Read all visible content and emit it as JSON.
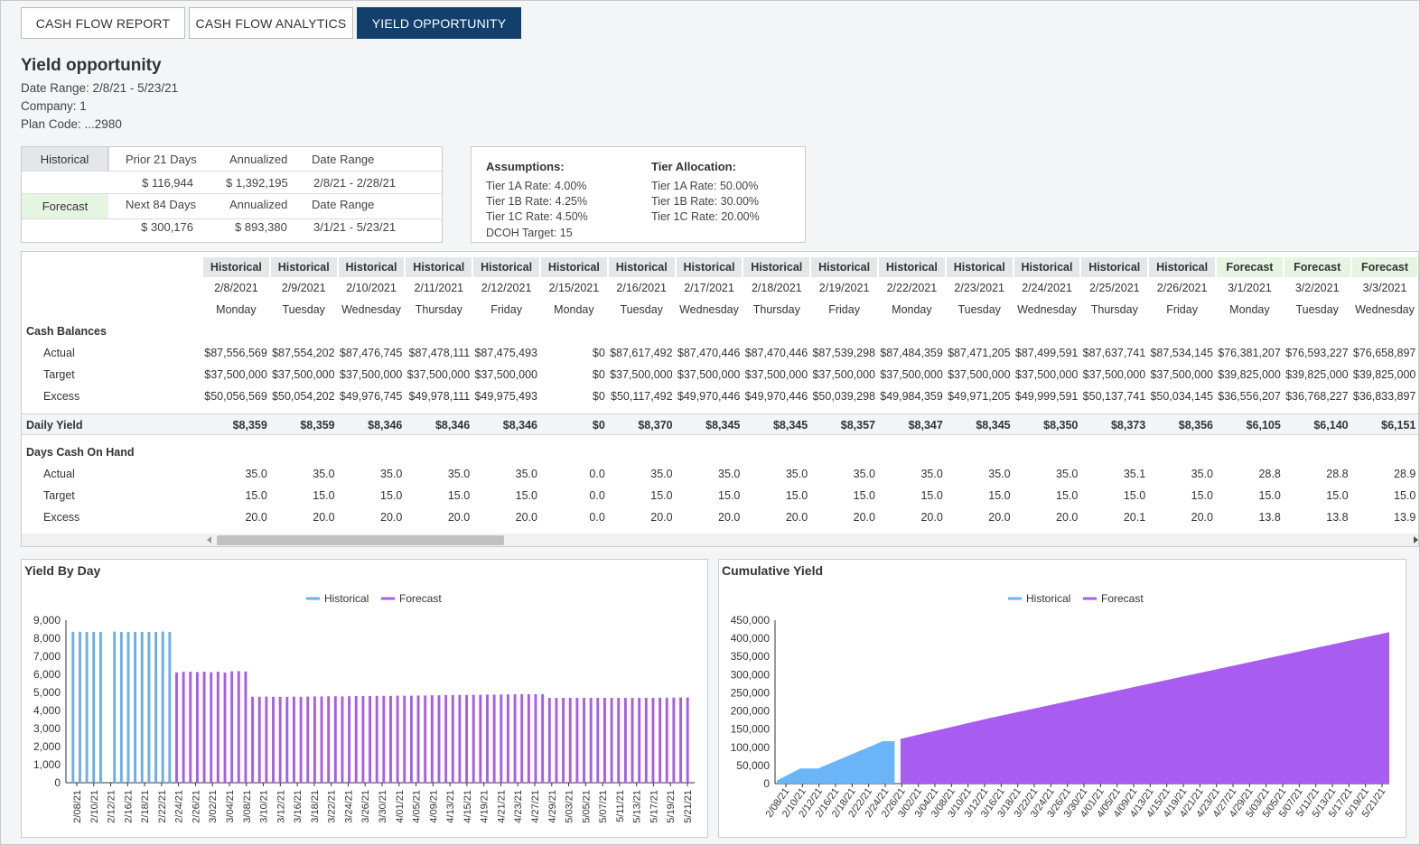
{
  "tabs": [
    {
      "label": "CASH FLOW REPORT",
      "active": false
    },
    {
      "label": "CASH FLOW ANALYTICS",
      "active": false
    },
    {
      "label": "YIELD OPPORTUNITY",
      "active": true
    }
  ],
  "page": {
    "title": "Yield opportunity",
    "date_range": "Date Range: 2/8/21 - 5/23/21",
    "company": "Company: 1",
    "plan_code": "Plan Code: ...2980"
  },
  "summary": {
    "historical_label": "Historical",
    "forecast_label": "Forecast",
    "hist_headers": [
      "Prior 21 Days",
      "Annualized",
      "Date Range"
    ],
    "hist_values": [
      "$ 116,944",
      "$ 1,392,195",
      "2/8/21 - 2/28/21"
    ],
    "fore_headers": [
      "Next 84 Days",
      "Annualized",
      "Date Range"
    ],
    "fore_values": [
      "$ 300,176",
      "$ 893,380",
      "3/1/21 - 5/23/21"
    ]
  },
  "assumptions": {
    "title": "Assumptions:",
    "lines": [
      "Tier 1A Rate: 4.00%",
      "Tier 1B Rate: 4.25%",
      "Tier 1C Rate: 4.50%",
      "DCOH Target: 15"
    ],
    "tier_title": "Tier Allocation:",
    "tier_lines": [
      "Tier 1A Rate: 50.00%",
      "Tier 1B Rate: 30.00%",
      "Tier 1C Rate: 20.00%"
    ]
  },
  "grid": {
    "sections": {
      "cash": "Cash Balances",
      "yield": "Daily Yield",
      "dcoh": "Days Cash On Hand"
    },
    "row_labels": {
      "actual": "Actual",
      "target": "Target",
      "excess": "Excess"
    },
    "columns": [
      {
        "type": "Historical",
        "date": "2/8/2021",
        "day": "Monday",
        "actual": "$87,556,569",
        "target": "$37,500,000",
        "excess": "$50,056,569",
        "yield": "$8,359",
        "d_actual": "35.0",
        "d_target": "15.0",
        "d_excess": "20.0"
      },
      {
        "type": "Historical",
        "date": "2/9/2021",
        "day": "Tuesday",
        "actual": "$87,554,202",
        "target": "$37,500,000",
        "excess": "$50,054,202",
        "yield": "$8,359",
        "d_actual": "35.0",
        "d_target": "15.0",
        "d_excess": "20.0"
      },
      {
        "type": "Historical",
        "date": "2/10/2021",
        "day": "Wednesday",
        "actual": "$87,476,745",
        "target": "$37,500,000",
        "excess": "$49,976,745",
        "yield": "$8,346",
        "d_actual": "35.0",
        "d_target": "15.0",
        "d_excess": "20.0"
      },
      {
        "type": "Historical",
        "date": "2/11/2021",
        "day": "Thursday",
        "actual": "$87,478,111",
        "target": "$37,500,000",
        "excess": "$49,978,111",
        "yield": "$8,346",
        "d_actual": "35.0",
        "d_target": "15.0",
        "d_excess": "20.0"
      },
      {
        "type": "Historical",
        "date": "2/12/2021",
        "day": "Friday",
        "actual": "$87,475,493",
        "target": "$37,500,000",
        "excess": "$49,975,493",
        "yield": "$8,346",
        "d_actual": "35.0",
        "d_target": "15.0",
        "d_excess": "20.0"
      },
      {
        "type": "Historical",
        "date": "2/15/2021",
        "day": "Monday",
        "actual": "$0",
        "target": "$0",
        "excess": "$0",
        "yield": "$0",
        "d_actual": "0.0",
        "d_target": "0.0",
        "d_excess": "0.0"
      },
      {
        "type": "Historical",
        "date": "2/16/2021",
        "day": "Tuesday",
        "actual": "$87,617,492",
        "target": "$37,500,000",
        "excess": "$50,117,492",
        "yield": "$8,370",
        "d_actual": "35.0",
        "d_target": "15.0",
        "d_excess": "20.0"
      },
      {
        "type": "Historical",
        "date": "2/17/2021",
        "day": "Wednesday",
        "actual": "$87,470,446",
        "target": "$37,500,000",
        "excess": "$49,970,446",
        "yield": "$8,345",
        "d_actual": "35.0",
        "d_target": "15.0",
        "d_excess": "20.0"
      },
      {
        "type": "Historical",
        "date": "2/18/2021",
        "day": "Thursday",
        "actual": "$87,470,446",
        "target": "$37,500,000",
        "excess": "$49,970,446",
        "yield": "$8,345",
        "d_actual": "35.0",
        "d_target": "15.0",
        "d_excess": "20.0"
      },
      {
        "type": "Historical",
        "date": "2/19/2021",
        "day": "Friday",
        "actual": "$87,539,298",
        "target": "$37,500,000",
        "excess": "$50,039,298",
        "yield": "$8,357",
        "d_actual": "35.0",
        "d_target": "15.0",
        "d_excess": "20.0"
      },
      {
        "type": "Historical",
        "date": "2/22/2021",
        "day": "Monday",
        "actual": "$87,484,359",
        "target": "$37,500,000",
        "excess": "$49,984,359",
        "yield": "$8,347",
        "d_actual": "35.0",
        "d_target": "15.0",
        "d_excess": "20.0"
      },
      {
        "type": "Historical",
        "date": "2/23/2021",
        "day": "Tuesday",
        "actual": "$87,471,205",
        "target": "$37,500,000",
        "excess": "$49,971,205",
        "yield": "$8,345",
        "d_actual": "35.0",
        "d_target": "15.0",
        "d_excess": "20.0"
      },
      {
        "type": "Historical",
        "date": "2/24/2021",
        "day": "Wednesday",
        "actual": "$87,499,591",
        "target": "$37,500,000",
        "excess": "$49,999,591",
        "yield": "$8,350",
        "d_actual": "35.0",
        "d_target": "15.0",
        "d_excess": "20.0"
      },
      {
        "type": "Historical",
        "date": "2/25/2021",
        "day": "Thursday",
        "actual": "$87,637,741",
        "target": "$37,500,000",
        "excess": "$50,137,741",
        "yield": "$8,373",
        "d_actual": "35.1",
        "d_target": "15.0",
        "d_excess": "20.1"
      },
      {
        "type": "Historical",
        "date": "2/26/2021",
        "day": "Friday",
        "actual": "$87,534,145",
        "target": "$37,500,000",
        "excess": "$50,034,145",
        "yield": "$8,356",
        "d_actual": "35.0",
        "d_target": "15.0",
        "d_excess": "20.0"
      },
      {
        "type": "Forecast",
        "date": "3/1/2021",
        "day": "Monday",
        "actual": "$76,381,207",
        "target": "$39,825,000",
        "excess": "$36,556,207",
        "yield": "$6,105",
        "d_actual": "28.8",
        "d_target": "15.0",
        "d_excess": "13.8"
      },
      {
        "type": "Forecast",
        "date": "3/2/2021",
        "day": "Tuesday",
        "actual": "$76,593,227",
        "target": "$39,825,000",
        "excess": "$36,768,227",
        "yield": "$6,140",
        "d_actual": "28.8",
        "d_target": "15.0",
        "d_excess": "13.8"
      },
      {
        "type": "Forecast",
        "date": "3/3/2021",
        "day": "Wednesday",
        "actual": "$76,658,897",
        "target": "$39,825,000",
        "excess": "$36,833,897",
        "yield": "$6,151",
        "d_actual": "28.9",
        "d_target": "15.0",
        "d_excess": "13.9"
      }
    ]
  },
  "chart_data": [
    {
      "type": "bar",
      "title": "Yield By Day",
      "legend": [
        "Historical",
        "Forecast"
      ],
      "legend_position": "top-center",
      "colors": {
        "Historical": "#6aaee8",
        "Forecast": "#a95ce8"
      },
      "ylim": [
        0,
        9000
      ],
      "yticks": [
        "9,000",
        "8,000",
        "7,000",
        "6,000",
        "5,000",
        "4,000",
        "3,000",
        "2,000",
        "1,000",
        "0"
      ],
      "xtick_labels": [
        "2/08/21",
        "2/10/21",
        "2/12/21",
        "2/16/21",
        "2/18/21",
        "2/22/21",
        "2/24/21",
        "2/26/21",
        "3/02/21",
        "3/04/21",
        "3/08/21",
        "3/10/21",
        "3/12/21",
        "3/16/21",
        "3/18/21",
        "3/22/21",
        "3/24/21",
        "3/26/21",
        "3/30/21",
        "4/01/21",
        "4/05/21",
        "4/09/21",
        "4/13/21",
        "4/15/21",
        "4/19/21",
        "4/21/21",
        "4/23/21",
        "4/27/21",
        "4/29/21",
        "5/03/21",
        "5/05/21",
        "5/07/21",
        "5/11/21",
        "5/13/21",
        "5/17/21",
        "5/19/21",
        "5/21/21"
      ],
      "series": [
        {
          "name": "Historical",
          "values": [
            8359,
            8359,
            8346,
            8346,
            8346,
            0,
            8370,
            8345,
            8345,
            8357,
            8347,
            8345,
            8350,
            8373,
            8356
          ]
        },
        {
          "name": "Forecast",
          "values": [
            6105,
            6140,
            6151,
            6130,
            6150,
            6120,
            6150,
            6100,
            6170,
            6180,
            6160,
            4760,
            4760,
            4770,
            4760,
            4760,
            4760,
            4770,
            4760,
            4770,
            4780,
            4780,
            4790,
            4790,
            4780,
            4790,
            4800,
            4800,
            4800,
            4810,
            4810,
            4810,
            4820,
            4820,
            4820,
            4830,
            4830,
            4840,
            4840,
            4850,
            4850,
            4860,
            4860,
            4870,
            4870,
            4880,
            4880,
            4890,
            4890,
            4900,
            4900,
            4900,
            4900,
            4900,
            4700,
            4700,
            4700,
            4700,
            4700,
            4700,
            4700,
            4700,
            4700,
            4700,
            4700,
            4700,
            4700,
            4700,
            4700,
            4700,
            4710,
            4710,
            4720,
            4720,
            4720
          ]
        }
      ]
    },
    {
      "type": "area",
      "title": "Cumulative Yield",
      "legend": [
        "Historical",
        "Forecast"
      ],
      "legend_position": "top-center",
      "colors": {
        "Historical": "#6ab4fa",
        "Forecast": "#a95cf0"
      },
      "ylim": [
        0,
        450000
      ],
      "yticks": [
        "450,000",
        "400,000",
        "350,000",
        "300,000",
        "250,000",
        "200,000",
        "150,000",
        "100,000",
        "50,000",
        "0"
      ],
      "xtick_labels": [
        "2/08/21",
        "2/10/21",
        "2/12/21",
        "2/16/21",
        "2/18/21",
        "2/22/21",
        "2/24/21",
        "2/26/21",
        "3/02/21",
        "3/04/21",
        "3/08/21",
        "3/10/21",
        "3/12/21",
        "3/16/21",
        "3/18/21",
        "3/22/21",
        "3/24/21",
        "3/26/21",
        "3/30/21",
        "4/01/21",
        "4/05/21",
        "4/09/21",
        "4/13/21",
        "4/15/21",
        "4/19/21",
        "4/21/21",
        "4/23/21",
        "4/27/21",
        "4/29/21",
        "5/03/21",
        "5/05/21",
        "5/07/21",
        "5/11/21",
        "5/13/21",
        "5/17/21",
        "5/19/21",
        "5/21/21"
      ],
      "series": [
        {
          "name": "Historical",
          "x": [
            "2/08/21",
            "2/12/21",
            "2/15/21",
            "2/26/21",
            "2/28/21"
          ],
          "values": [
            8359,
            41756,
            41756,
            116944,
            116944
          ]
        },
        {
          "name": "Forecast",
          "x": [
            "3/01/21",
            "3/16/21",
            "5/23/21"
          ],
          "values": [
            123049,
            180000,
            417120
          ]
        }
      ]
    }
  ]
}
